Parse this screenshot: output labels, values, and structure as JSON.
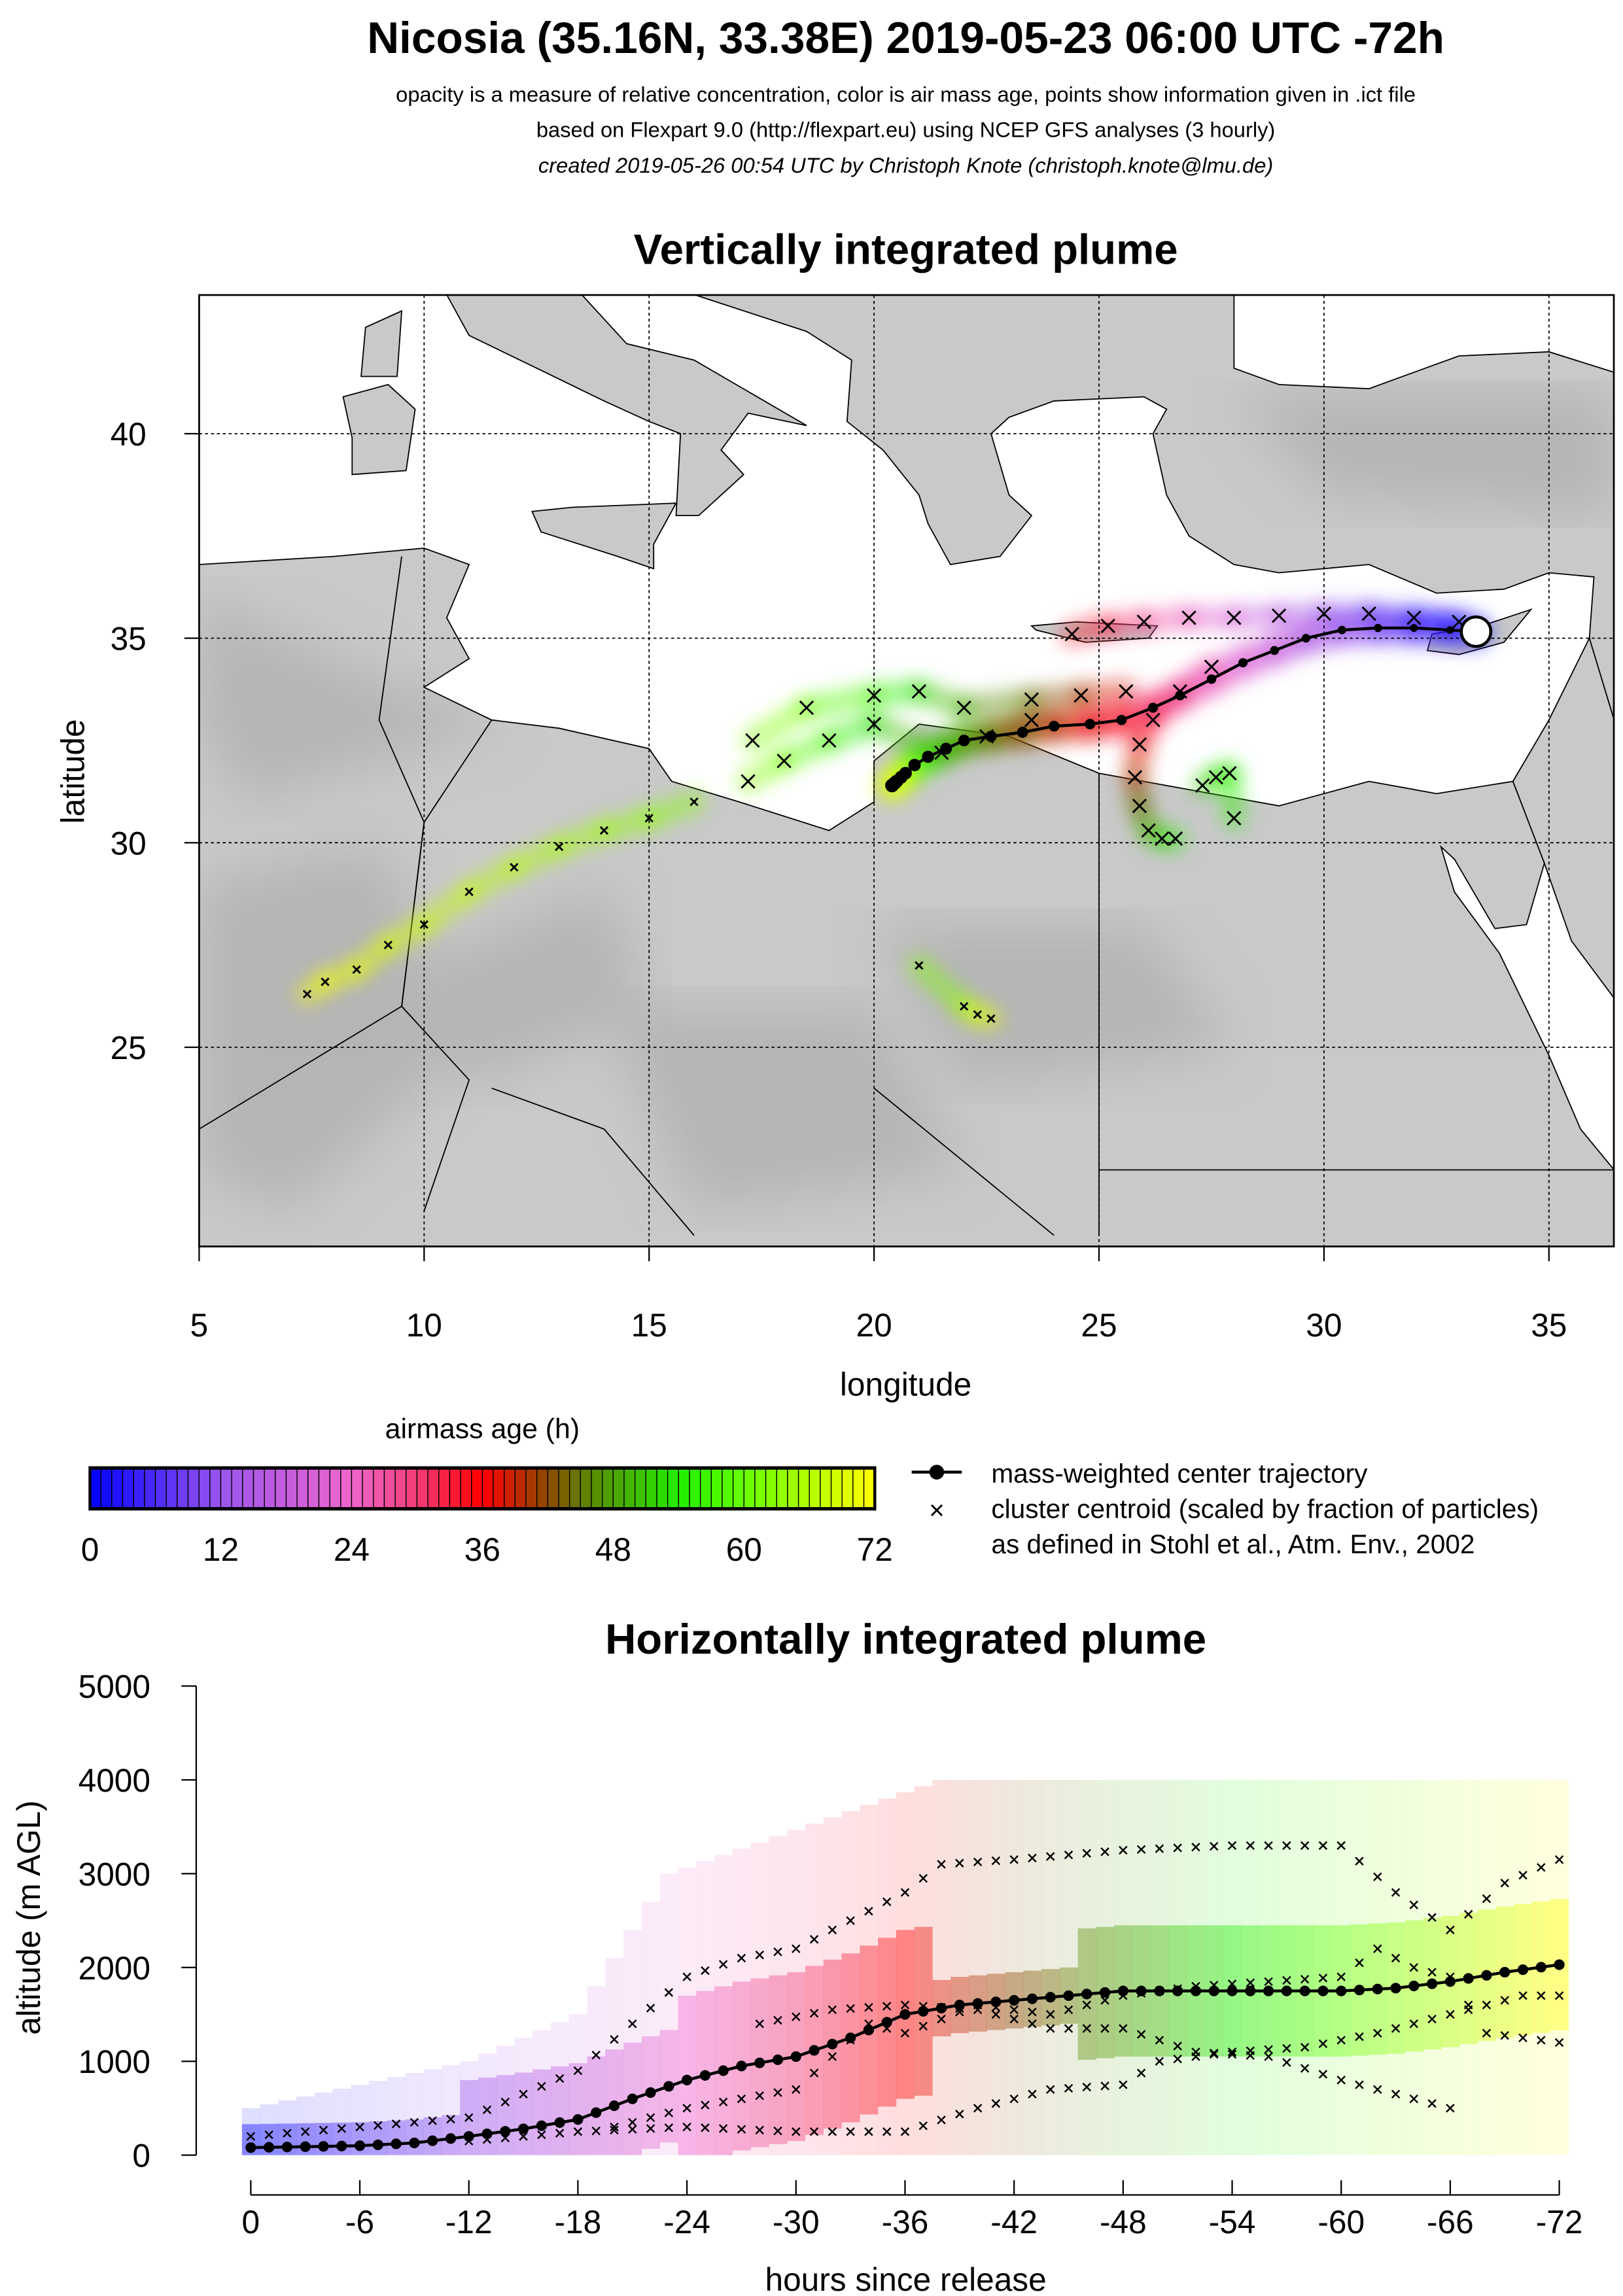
{
  "header": {
    "title": "Nicosia (35.16N, 33.38E) 2019-05-23 06:00 UTC -72h",
    "line1": "opacity is a measure of relative concentration, color is air mass age, points show information given in .ict file",
    "line2": "based on Flexpart 9.0 (http://flexpart.eu) using NCEP GFS analyses (3 hourly)",
    "line3": "created 2019-05-26 00:54 UTC by Christoph Knote (christoph.knote@lmu.de)"
  },
  "colors": {
    "land": "#c9c9c9",
    "land_dark": "#a8a8a8",
    "sea": "#ffffff",
    "colormap": [
      "#0000ff",
      "#9a55ee",
      "#ee66cc",
      "#f23c78",
      "#ff0000",
      "#8a4a00",
      "#5a8a00",
      "#22ee00",
      "#66ff00",
      "#ffff00"
    ],
    "colormap_ages": [
      0,
      12,
      24,
      30,
      36,
      42,
      46,
      54,
      60,
      72
    ]
  },
  "chart_data": [
    {
      "type": "scatter",
      "title": "Vertically integrated plume",
      "xlabel": "longitude",
      "ylabel": "latitude",
      "xlim": [
        5,
        36.45
      ],
      "ylim": [
        20.4,
        43.4
      ],
      "xticks": [
        "5",
        "10",
        "15",
        "20",
        "25",
        "30",
        "35"
      ],
      "xtick_values": [
        5,
        10,
        15,
        20,
        25,
        30,
        35
      ],
      "yticks": [
        "25",
        "30",
        "35",
        "40"
      ],
      "ytick_values": [
        25,
        30,
        35,
        40
      ],
      "grid": true,
      "release_point": {
        "lon": 33.38,
        "lat": 35.16
      },
      "center_trajectory": {
        "hours": [
          0,
          3,
          6,
          9,
          12,
          15,
          18,
          21,
          24,
          27,
          30,
          33,
          36,
          39,
          42,
          45,
          48,
          51,
          54,
          57,
          60,
          63,
          66,
          69,
          72
        ],
        "lon": [
          33.38,
          32.8,
          32.0,
          31.2,
          30.4,
          29.6,
          28.9,
          28.2,
          27.5,
          26.8,
          26.2,
          25.5,
          24.8,
          24.0,
          23.3,
          22.6,
          22.0,
          21.6,
          21.2,
          20.9,
          20.7,
          20.6,
          20.5,
          20.45,
          20.4
        ],
        "lat": [
          35.16,
          35.2,
          35.25,
          35.25,
          35.2,
          35.0,
          34.7,
          34.4,
          34.0,
          33.6,
          33.3,
          33.0,
          32.9,
          32.85,
          32.7,
          32.6,
          32.5,
          32.3,
          32.1,
          31.9,
          31.7,
          31.6,
          31.5,
          31.45,
          31.4
        ]
      },
      "cluster_tracks": [
        {
          "lon": [
            33.0,
            32.0,
            31.0,
            30.0,
            29.0,
            28.0,
            27.0,
            26.0,
            25.2,
            24.4
          ],
          "lat": [
            35.4,
            35.5,
            35.6,
            35.6,
            35.55,
            35.5,
            35.5,
            35.4,
            35.3,
            35.1
          ],
          "ages": [
            0,
            4,
            8,
            12,
            16,
            20,
            24,
            28,
            32,
            36
          ]
        },
        {
          "lon": [
            27.5,
            26.8,
            26.2,
            25.9,
            25.8,
            25.9,
            26.1,
            26.4,
            26.7
          ],
          "lat": [
            34.3,
            33.7,
            33.0,
            32.4,
            31.6,
            30.9,
            30.3,
            30.1,
            30.1
          ],
          "ages": [
            24,
            28,
            32,
            36,
            40,
            44,
            48,
            52,
            56
          ]
        },
        {
          "lon": [
            25.6,
            24.6,
            23.5,
            22.0,
            21.0,
            20.0,
            18.5,
            17.3
          ],
          "lat": [
            33.7,
            33.6,
            33.5,
            33.3,
            33.7,
            33.6,
            33.3,
            32.5
          ],
          "ages": [
            36,
            40,
            44,
            48,
            52,
            56,
            60,
            64
          ]
        },
        {
          "lon": [
            23.5,
            22.5,
            21.5,
            20.0,
            19.0,
            18.0,
            17.2
          ],
          "lat": [
            33.0,
            32.6,
            32.2,
            32.9,
            32.5,
            32.0,
            31.5
          ],
          "ages": [
            40,
            44,
            48,
            52,
            56,
            60,
            64
          ]
        },
        {
          "lon": [
            16.0,
            15.0,
            14.0,
            13.0,
            12.0,
            11.0,
            10.0,
            9.2,
            8.5,
            7.8,
            7.4
          ],
          "lat": [
            31.0,
            30.6,
            30.3,
            29.9,
            29.4,
            28.8,
            28.0,
            27.5,
            26.9,
            26.6,
            26.3
          ],
          "ages": [
            62,
            63,
            64,
            65,
            66,
            67,
            68,
            69,
            70,
            71,
            72
          ]
        },
        {
          "lon": [
            27.3,
            27.6,
            27.9,
            28.0
          ],
          "lat": [
            31.4,
            31.6,
            31.7,
            30.6
          ],
          "ages": [
            50,
            52,
            54,
            56
          ]
        },
        {
          "lon": [
            21.0,
            22.0,
            22.3,
            22.6
          ],
          "lat": [
            27.0,
            26.0,
            25.8,
            25.7
          ],
          "ages": [
            60,
            64,
            68,
            72
          ]
        }
      ]
    },
    {
      "type": "scatter",
      "title": "Horizontally integrated plume",
      "xlabel": "hours since release",
      "ylabel": "altitude (m AGL)",
      "xlim": [
        0,
        -72
      ],
      "ylim": [
        0,
        5000
      ],
      "xticks": [
        "0",
        "-6",
        "-12",
        "-18",
        "-24",
        "-30",
        "-36",
        "-42",
        "-48",
        "-54",
        "-60",
        "-66",
        "-72"
      ],
      "xtick_values": [
        0,
        6,
        12,
        18,
        24,
        30,
        36,
        42,
        48,
        54,
        60,
        66,
        72
      ],
      "yticks": [
        "0",
        "1000",
        "2000",
        "3000",
        "4000",
        "5000"
      ],
      "ytick_values": [
        0,
        1000,
        2000,
        3000,
        4000,
        5000
      ],
      "center_trajectory": {
        "hours": [
          0,
          3,
          6,
          9,
          12,
          15,
          18,
          21,
          24,
          27,
          30,
          33,
          36,
          39,
          42,
          45,
          48,
          51,
          54,
          57,
          60,
          63,
          66,
          69,
          72
        ],
        "altitude": [
          80,
          90,
          100,
          130,
          200,
          280,
          380,
          600,
          800,
          950,
          1050,
          1250,
          1500,
          1600,
          1650,
          1700,
          1750,
          1750,
          1750,
          1750,
          1750,
          1780,
          1850,
          1950,
          2030
        ]
      },
      "plume_extent": {
        "hours": [
          0,
          12,
          18,
          23,
          38,
          60,
          61,
          72
        ],
        "bottom": [
          0,
          0,
          0,
          0,
          0,
          0,
          0,
          0
        ],
        "top": [
          500,
          1000,
          1500,
          3000,
          4000,
          4000,
          4000,
          4000
        ]
      },
      "cluster_tracks": [
        {
          "hours": [
            0,
            6,
            12,
            18,
            21,
            24,
            27,
            30,
            33,
            36,
            38,
            42,
            48,
            54,
            60,
            63,
            66,
            69,
            72
          ],
          "altitude": [
            200,
            300,
            400,
            900,
            1400,
            1900,
            2100,
            2200,
            2500,
            2800,
            3100,
            3150,
            3250,
            3300,
            3300,
            2800,
            2400,
            2900,
            3150
          ]
        },
        {
          "hours": [
            20,
            24,
            30,
            34,
            36,
            40,
            44,
            48,
            52,
            56,
            60,
            62,
            64,
            66,
            68,
            72
          ],
          "altitude": [
            300,
            500,
            700,
            1400,
            1300,
            1600,
            1500,
            1700,
            1800,
            1850,
            1900,
            2200,
            2000,
            1900,
            1300,
            1200
          ]
        },
        {
          "hours": [
            12,
            18,
            24,
            30,
            36,
            40,
            44,
            48,
            50,
            54,
            58,
            62,
            66,
            70,
            72
          ],
          "altitude": [
            150,
            250,
            300,
            250,
            250,
            500,
            700,
            750,
            1000,
            1100,
            1150,
            1300,
            1500,
            1700,
            1700
          ]
        },
        {
          "hours": [
            28,
            32,
            36,
            40,
            44,
            48,
            52,
            56,
            60,
            64,
            66
          ],
          "altitude": [
            1400,
            1550,
            1600,
            1550,
            1350,
            1350,
            1100,
            1050,
            800,
            600,
            500
          ]
        }
      ]
    }
  ],
  "legend": {
    "colorbar_title": "airmass age (h)",
    "colorbar_ticks": [
      "0",
      "12",
      "24",
      "36",
      "48",
      "60",
      "72"
    ],
    "colorbar_tick_values": [
      0,
      12,
      24,
      36,
      48,
      60,
      72
    ],
    "line1": "mass-weighted center trajectory",
    "line2": "cluster centroid (scaled by fraction of particles)",
    "line3": "as defined in Stohl et al., Atm. Env., 2002",
    "marker_x": "×"
  }
}
